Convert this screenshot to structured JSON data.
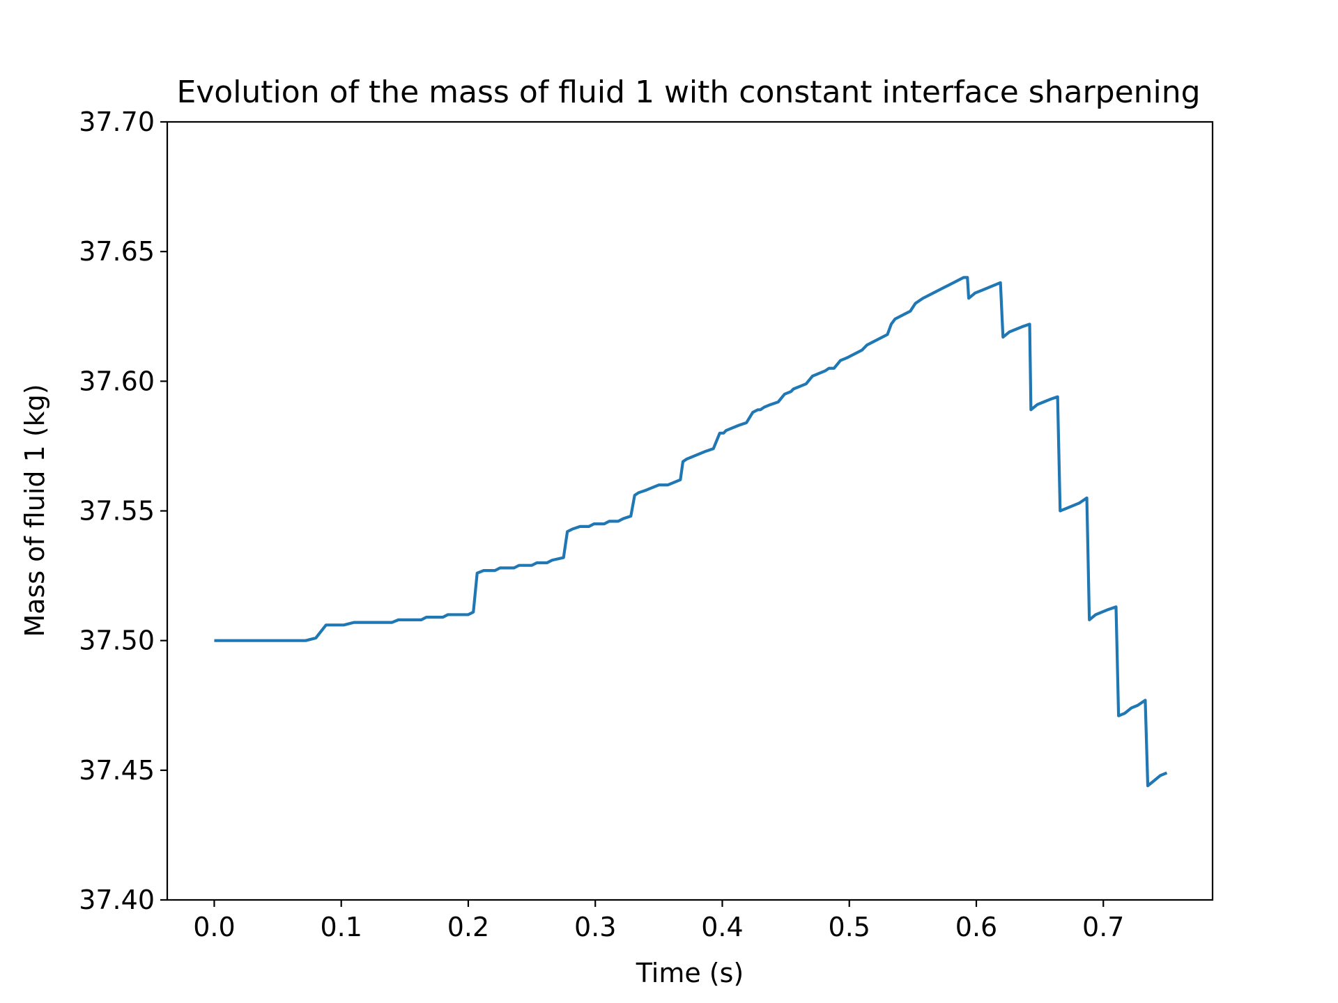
{
  "chart_data": {
    "type": "line",
    "title": "Evolution of the mass of fluid 1 with constant interface sharpening",
    "xlabel": "Time (s)",
    "ylabel": "Mass of fluid 1 (kg)",
    "xlim": [
      -0.037,
      0.786
    ],
    "ylim": [
      37.4,
      37.7
    ],
    "xticks": [
      0.0,
      0.1,
      0.2,
      0.3,
      0.4,
      0.5,
      0.6,
      0.7
    ],
    "xtick_labels": [
      "0.0",
      "0.1",
      "0.2",
      "0.3",
      "0.4",
      "0.5",
      "0.6",
      "0.7"
    ],
    "yticks": [
      37.4,
      37.45,
      37.5,
      37.55,
      37.6,
      37.65,
      37.7
    ],
    "ytick_labels": [
      "37.40",
      "37.45",
      "37.50",
      "37.55",
      "37.60",
      "37.65",
      "37.70"
    ],
    "grid": false,
    "colors": {
      "series": "#1f77b4"
    },
    "series": [
      {
        "x": [
          0.0,
          0.072,
          0.08,
          0.088,
          0.102,
          0.11,
          0.14,
          0.145,
          0.163,
          0.167,
          0.18,
          0.184,
          0.2,
          0.204,
          0.207,
          0.212,
          0.221,
          0.225,
          0.236,
          0.24,
          0.25,
          0.254,
          0.262,
          0.266,
          0.275,
          0.278,
          0.282,
          0.288,
          0.295,
          0.299,
          0.307,
          0.311,
          0.318,
          0.322,
          0.328,
          0.331,
          0.334,
          0.34,
          0.345,
          0.35,
          0.357,
          0.362,
          0.367,
          0.369,
          0.372,
          0.377,
          0.382,
          0.387,
          0.393,
          0.398,
          0.401,
          0.403,
          0.408,
          0.413,
          0.419,
          0.424,
          0.428,
          0.43,
          0.433,
          0.438,
          0.444,
          0.449,
          0.454,
          0.456,
          0.461,
          0.466,
          0.471,
          0.476,
          0.481,
          0.484,
          0.488,
          0.493,
          0.498,
          0.502,
          0.506,
          0.51,
          0.514,
          0.518,
          0.522,
          0.526,
          0.53,
          0.533,
          0.536,
          0.54,
          0.544,
          0.548,
          0.552,
          0.555,
          0.558,
          0.562,
          0.566,
          0.57,
          0.574,
          0.578,
          0.582,
          0.586,
          0.59,
          0.593,
          0.594,
          0.599,
          0.604,
          0.609,
          0.614,
          0.619,
          0.621,
          0.626,
          0.631,
          0.636,
          0.642,
          0.643,
          0.648,
          0.653,
          0.658,
          0.664,
          0.666,
          0.671,
          0.676,
          0.681,
          0.687,
          0.689,
          0.694,
          0.699,
          0.704,
          0.71,
          0.712,
          0.717,
          0.722,
          0.727,
          0.733,
          0.735,
          0.74,
          0.745,
          0.75
        ],
        "y": [
          37.5,
          37.5,
          37.501,
          37.506,
          37.506,
          37.507,
          37.507,
          37.508,
          37.508,
          37.509,
          37.509,
          37.51,
          37.51,
          37.511,
          37.526,
          37.527,
          37.527,
          37.528,
          37.528,
          37.529,
          37.529,
          37.53,
          37.53,
          37.531,
          37.532,
          37.542,
          37.543,
          37.544,
          37.544,
          37.545,
          37.545,
          37.546,
          37.546,
          37.547,
          37.548,
          37.556,
          37.557,
          37.558,
          37.559,
          37.56,
          37.56,
          37.561,
          37.562,
          37.569,
          37.57,
          37.571,
          37.572,
          37.573,
          37.574,
          37.58,
          37.58,
          37.581,
          37.582,
          37.583,
          37.584,
          37.588,
          37.589,
          37.589,
          37.59,
          37.591,
          37.592,
          37.595,
          37.596,
          37.597,
          37.598,
          37.599,
          37.602,
          37.603,
          37.604,
          37.605,
          37.605,
          37.608,
          37.609,
          37.61,
          37.611,
          37.612,
          37.614,
          37.615,
          37.616,
          37.617,
          37.618,
          37.622,
          37.624,
          37.625,
          37.626,
          37.627,
          37.63,
          37.631,
          37.632,
          37.633,
          37.634,
          37.635,
          37.636,
          37.637,
          37.638,
          37.639,
          37.64,
          37.64,
          37.632,
          37.634,
          37.635,
          37.636,
          37.637,
          37.638,
          37.617,
          37.619,
          37.62,
          37.621,
          37.622,
          37.589,
          37.591,
          37.592,
          37.593,
          37.594,
          37.55,
          37.551,
          37.552,
          37.553,
          37.555,
          37.508,
          37.51,
          37.511,
          37.512,
          37.513,
          37.471,
          37.472,
          37.474,
          37.475,
          37.477,
          37.444,
          37.446,
          37.448,
          37.449
        ]
      }
    ]
  }
}
